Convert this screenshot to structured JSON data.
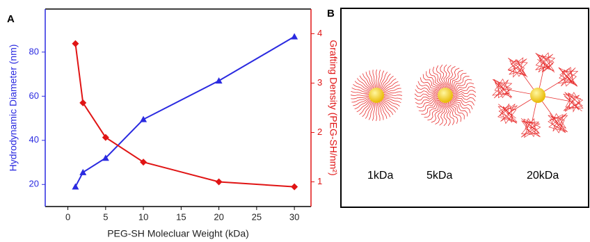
{
  "panel_labels": [
    "A",
    "B"
  ],
  "chart_data": {
    "type": "line",
    "xlabel": "PEG-SH Molecluar Weight (kDa)",
    "ylabel": "Hydrodynamic Diameter (nm)",
    "y2label": "Grafting Density (PEG-SH/nm²)",
    "x": [
      1,
      2,
      5,
      10,
      20,
      30
    ],
    "series": [
      {
        "color": "#2a2ae0",
        "marker": "triangle",
        "values": [
          19,
          25.5,
          32,
          49.5,
          67,
          87
        ]
      },
      {
        "color": "#e01414",
        "marker": "diamond",
        "axis": "y2",
        "values": [
          3.8,
          2.6,
          1.9,
          1.4,
          1.0,
          0.9
        ]
      }
    ],
    "xlim": [
      -3,
      32.2
    ],
    "xticks": [
      0,
      5,
      10,
      15,
      20,
      25,
      30
    ],
    "ylim": [
      10,
      99.5
    ],
    "yticks": [
      20,
      40,
      60,
      80
    ],
    "y2lim": [
      0.5,
      4.5
    ],
    "y2ticks": [
      1,
      2,
      3,
      4
    ]
  },
  "diagram": {
    "labels": [
      "1kDa",
      "5kDa",
      "20kDa"
    ]
  }
}
